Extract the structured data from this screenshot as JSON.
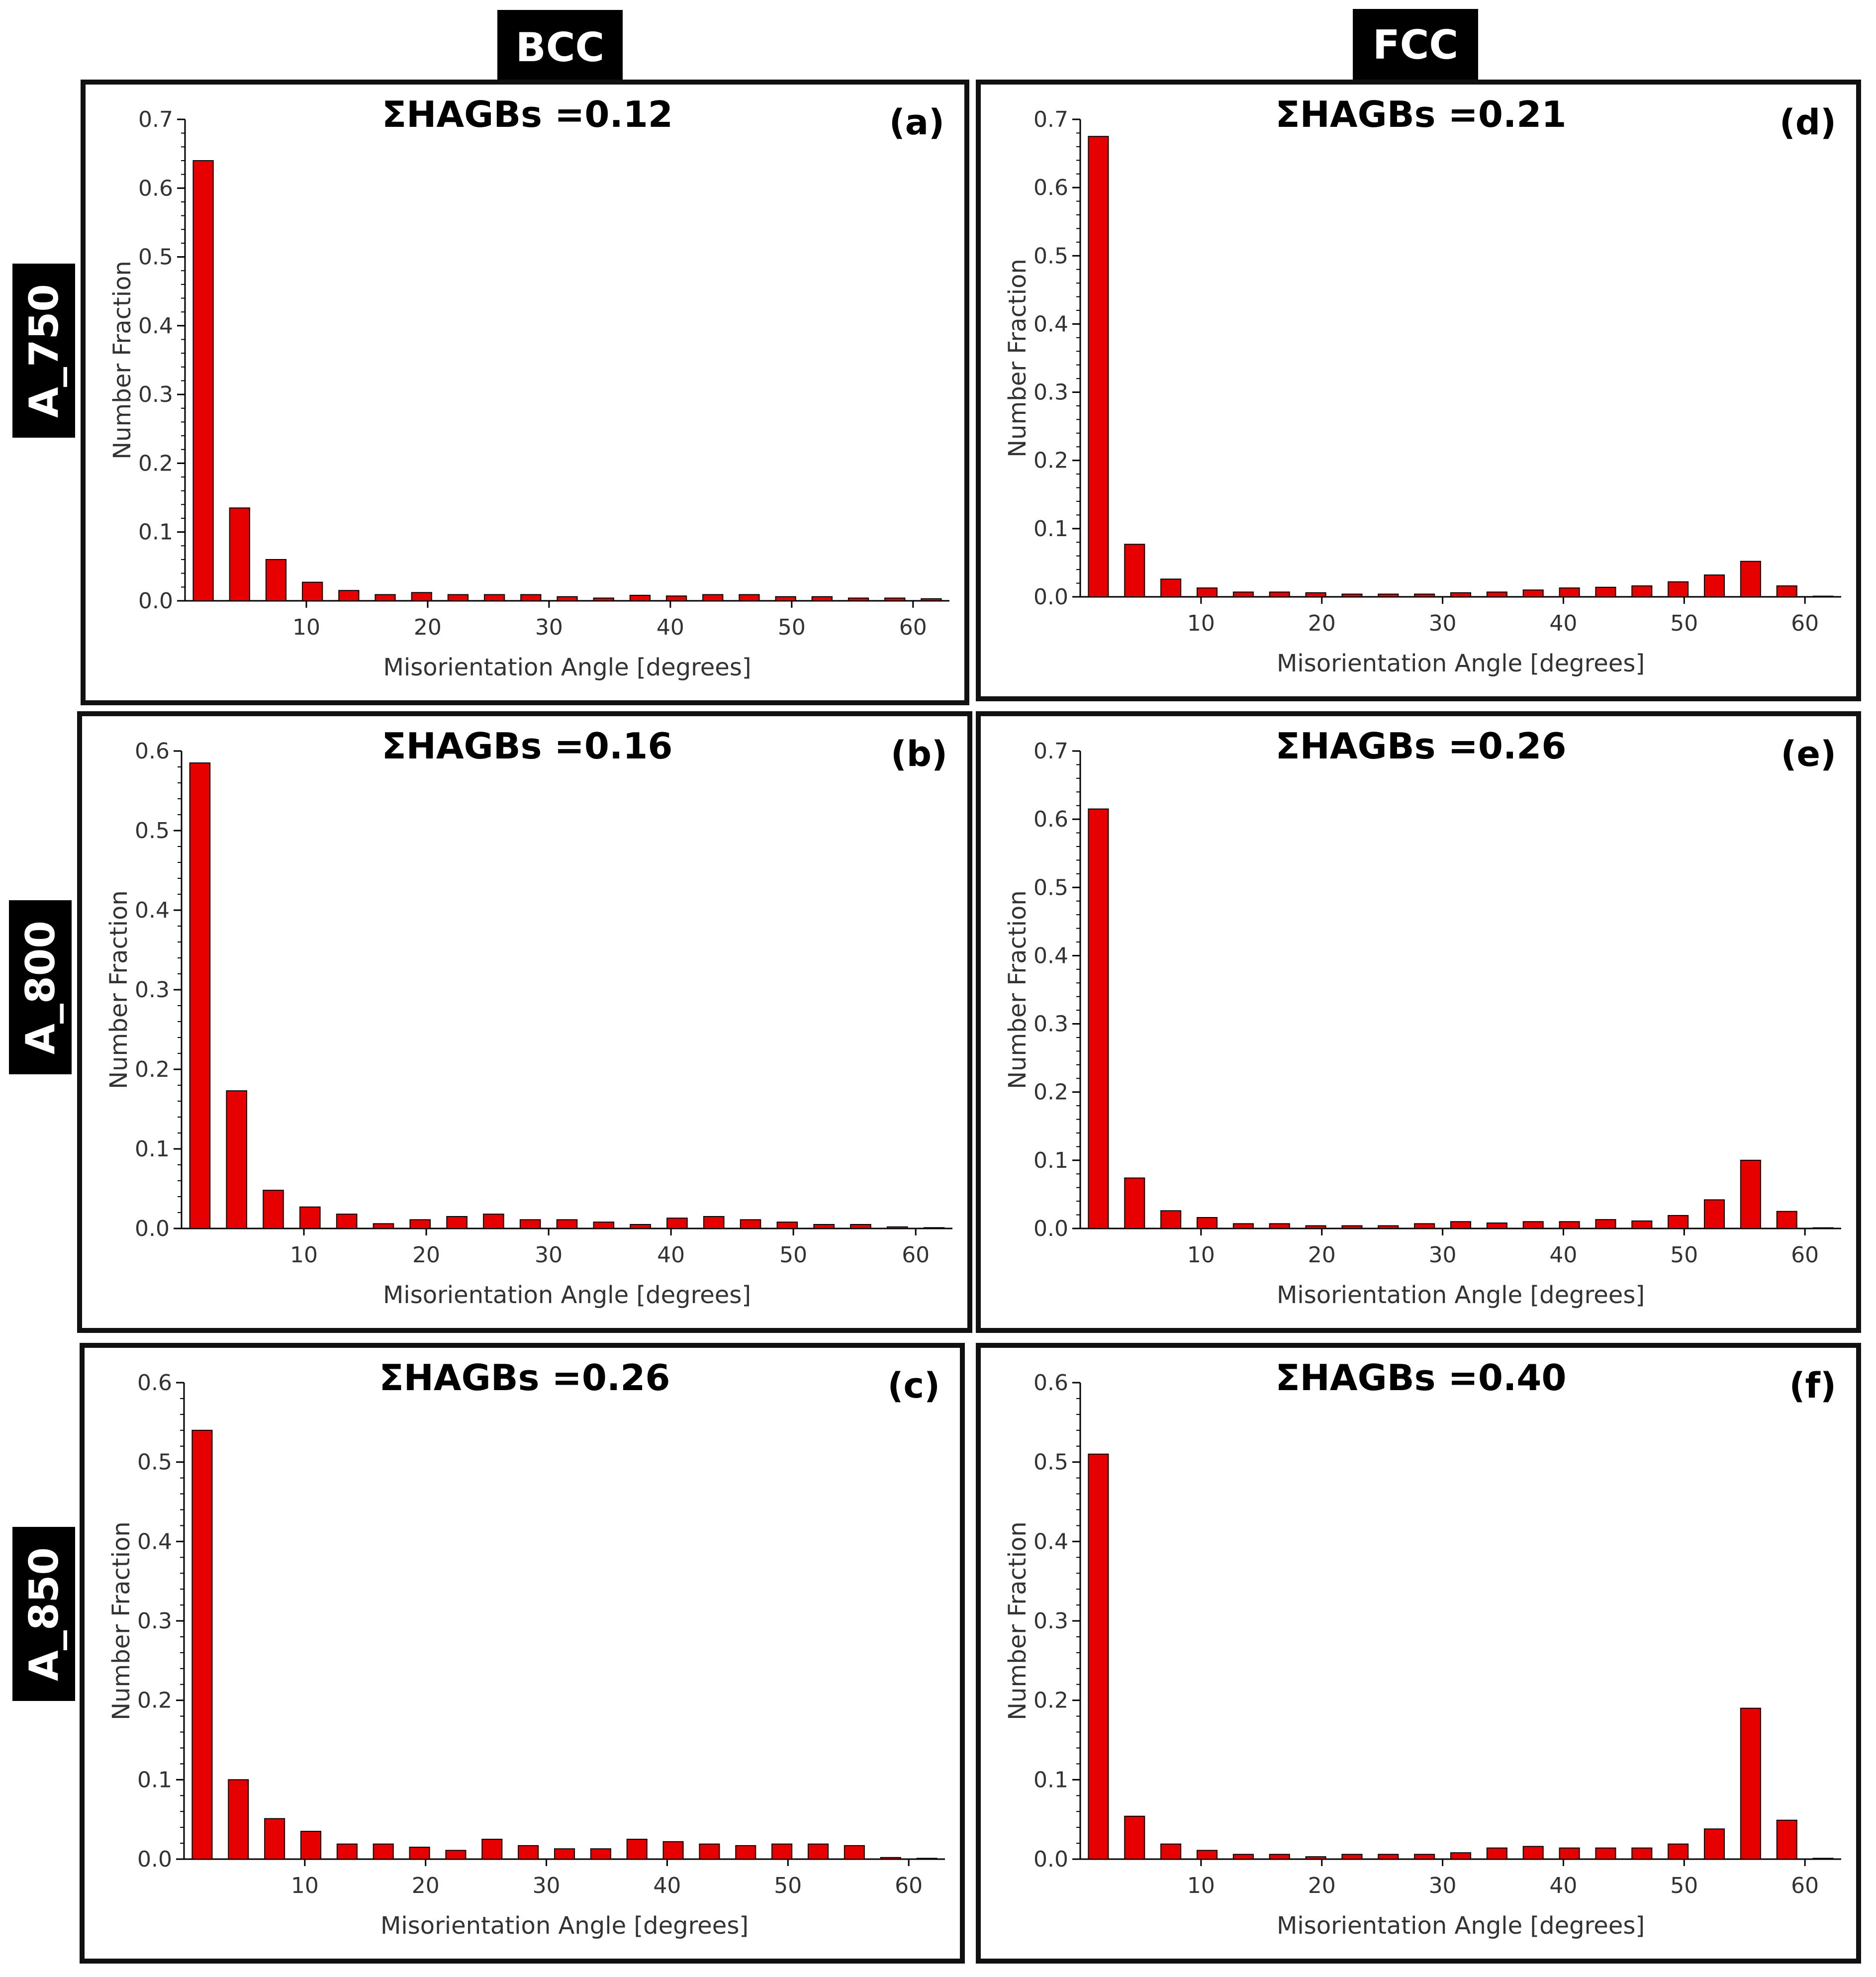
{
  "column_headers": [
    "BCC",
    "FCC"
  ],
  "row_headers": [
    "A_750",
    "A_800",
    "A_850"
  ],
  "bar_color": "#e60000",
  "chart_data": [
    {
      "type": "bar",
      "panel_label": "(a)",
      "title": "ΣHAGBs =0.12",
      "xlabel": "Misorientation Angle [degrees]",
      "ylabel": "Number Fraction",
      "ylim": [
        0,
        0.7
      ],
      "y_ticks": [
        "0.0",
        "0.1",
        "0.2",
        "0.3",
        "0.4",
        "0.5",
        "0.6",
        "0.7"
      ],
      "xlim": [
        0,
        63
      ],
      "x_ticks": [
        "10",
        "20",
        "30",
        "40",
        "50",
        "60"
      ],
      "categories": [
        3,
        6,
        9,
        12,
        15,
        18,
        21,
        24,
        27,
        30,
        33,
        36,
        39,
        42,
        45,
        48,
        51,
        54,
        57,
        60,
        63
      ],
      "values": [
        0.64,
        0.135,
        0.06,
        0.027,
        0.015,
        0.009,
        0.012,
        0.009,
        0.009,
        0.009,
        0.006,
        0.004,
        0.008,
        0.007,
        0.009,
        0.009,
        0.006,
        0.006,
        0.004,
        0.004,
        0.003
      ]
    },
    {
      "type": "bar",
      "panel_label": "(b)",
      "title": "ΣHAGBs =0.16",
      "xlabel": "Misorientation Angle [degrees]",
      "ylabel": "Number Fraction",
      "ylim": [
        0,
        0.6
      ],
      "y_ticks": [
        "0.0",
        "0.1",
        "0.2",
        "0.3",
        "0.4",
        "0.5",
        "0.6"
      ],
      "xlim": [
        0,
        63
      ],
      "x_ticks": [
        "10",
        "20",
        "30",
        "40",
        "50",
        "60"
      ],
      "categories": [
        3,
        6,
        9,
        12,
        15,
        18,
        21,
        24,
        27,
        30,
        33,
        36,
        39,
        42,
        45,
        48,
        51,
        54,
        57,
        60,
        63
      ],
      "values": [
        0.585,
        0.173,
        0.048,
        0.027,
        0.018,
        0.006,
        0.011,
        0.015,
        0.018,
        0.011,
        0.011,
        0.008,
        0.005,
        0.013,
        0.015,
        0.011,
        0.008,
        0.005,
        0.005,
        0.002,
        0.001
      ]
    },
    {
      "type": "bar",
      "panel_label": "(c)",
      "title": "ΣHAGBs =0.26",
      "xlabel": "Misorientation Angle [degrees]",
      "ylabel": "Number Fraction",
      "ylim": [
        0,
        0.6
      ],
      "y_ticks": [
        "0.0",
        "0.1",
        "0.2",
        "0.3",
        "0.4",
        "0.5",
        "0.6"
      ],
      "xlim": [
        0,
        63
      ],
      "x_ticks": [
        "10",
        "20",
        "30",
        "40",
        "50",
        "60"
      ],
      "categories": [
        3,
        6,
        9,
        12,
        15,
        18,
        21,
        24,
        27,
        30,
        33,
        36,
        39,
        42,
        45,
        48,
        51,
        54,
        57,
        60,
        63
      ],
      "values": [
        0.54,
        0.1,
        0.051,
        0.035,
        0.019,
        0.019,
        0.015,
        0.011,
        0.025,
        0.017,
        0.013,
        0.013,
        0.025,
        0.022,
        0.019,
        0.017,
        0.019,
        0.019,
        0.017,
        0.002,
        0.001
      ]
    },
    {
      "type": "bar",
      "panel_label": "(d)",
      "title": "ΣHAGBs =0.21",
      "xlabel": "Misorientation Angle [degrees]",
      "ylabel": "Number Fraction",
      "ylim": [
        0,
        0.7
      ],
      "y_ticks": [
        "0.0",
        "0.1",
        "0.2",
        "0.3",
        "0.4",
        "0.5",
        "0.6",
        "0.7"
      ],
      "xlim": [
        0,
        63
      ],
      "x_ticks": [
        "10",
        "20",
        "30",
        "40",
        "50",
        "60"
      ],
      "categories": [
        3,
        6,
        9,
        12,
        15,
        18,
        21,
        24,
        27,
        30,
        33,
        36,
        39,
        42,
        45,
        48,
        51,
        54,
        57,
        60,
        63
      ],
      "values": [
        0.675,
        0.077,
        0.026,
        0.013,
        0.007,
        0.007,
        0.006,
        0.004,
        0.004,
        0.004,
        0.006,
        0.007,
        0.01,
        0.013,
        0.014,
        0.016,
        0.022,
        0.032,
        0.052,
        0.016,
        0.001
      ]
    },
    {
      "type": "bar",
      "panel_label": "(e)",
      "title": "ΣHAGBs =0.26",
      "xlabel": "Misorientation Angle [degrees]",
      "ylabel": "Number Fraction",
      "ylim": [
        0,
        0.7
      ],
      "y_ticks": [
        "0.0",
        "0.1",
        "0.2",
        "0.3",
        "0.4",
        "0.5",
        "0.6",
        "0.7"
      ],
      "xlim": [
        0,
        63
      ],
      "x_ticks": [
        "10",
        "20",
        "30",
        "40",
        "50",
        "60"
      ],
      "categories": [
        3,
        6,
        9,
        12,
        15,
        18,
        21,
        24,
        27,
        30,
        33,
        36,
        39,
        42,
        45,
        48,
        51,
        54,
        57,
        60,
        63
      ],
      "values": [
        0.615,
        0.074,
        0.026,
        0.016,
        0.007,
        0.007,
        0.004,
        0.004,
        0.004,
        0.007,
        0.01,
        0.008,
        0.01,
        0.01,
        0.013,
        0.011,
        0.019,
        0.042,
        0.1,
        0.025,
        0.001
      ]
    },
    {
      "type": "bar",
      "panel_label": "(f)",
      "title": "ΣHAGBs =0.40",
      "xlabel": "Misorientation Angle [degrees]",
      "ylabel": "Number Fraction",
      "ylim": [
        0,
        0.6
      ],
      "y_ticks": [
        "0.0",
        "0.1",
        "0.2",
        "0.3",
        "0.4",
        "0.5",
        "0.6"
      ],
      "xlim": [
        0,
        63
      ],
      "x_ticks": [
        "10",
        "20",
        "30",
        "40",
        "50",
        "60"
      ],
      "categories": [
        3,
        6,
        9,
        12,
        15,
        18,
        21,
        24,
        27,
        30,
        33,
        36,
        39,
        42,
        45,
        48,
        51,
        54,
        57,
        60,
        63
      ],
      "values": [
        0.51,
        0.054,
        0.019,
        0.011,
        0.006,
        0.006,
        0.003,
        0.006,
        0.006,
        0.006,
        0.008,
        0.014,
        0.016,
        0.014,
        0.014,
        0.014,
        0.019,
        0.038,
        0.19,
        0.049,
        0.001
      ]
    }
  ]
}
